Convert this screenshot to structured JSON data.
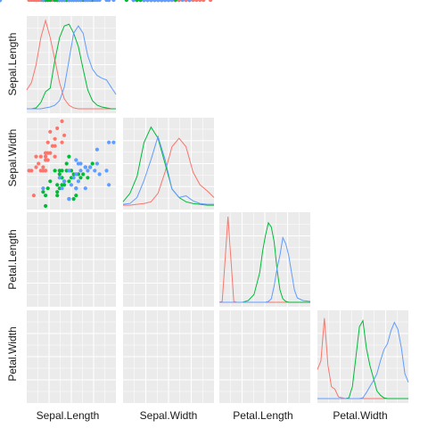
{
  "chart_data": {
    "type": "scatter-matrix",
    "variables": [
      "Sepal.Length",
      "Sepal.Width",
      "Petal.Length",
      "Petal.Width"
    ],
    "series_colors": [
      "#f8766d",
      "#00ba38",
      "#619cff"
    ],
    "panel_background": "#ebebeb",
    "grid_color": "#ffffff",
    "grid": true,
    "diagonal": "density",
    "lower": "scatter",
    "upper": "blank",
    "ranges": {
      "Sepal.Length": [
        4.2,
        8.0
      ],
      "Sepal.Width": [
        1.9,
        4.5
      ],
      "Petal.Length": [
        0.8,
        7.1
      ],
      "Petal.Width": [
        0.0,
        2.6
      ]
    },
    "density_x": [
      [
        4.2,
        4.4,
        4.6,
        4.8,
        5.0,
        5.2,
        5.4,
        5.6,
        5.8,
        6.0,
        6.2,
        6.4,
        6.6,
        6.8,
        7.0,
        7.2,
        7.4,
        7.6,
        7.8,
        8.0
      ],
      [
        1.9,
        2.1,
        2.3,
        2.5,
        2.7,
        2.9,
        3.1,
        3.3,
        3.5,
        3.7,
        3.9,
        4.1,
        4.3,
        4.5
      ],
      [
        0.8,
        1.0,
        1.2,
        1.4,
        1.6,
        1.8,
        2.0,
        2.4,
        2.8,
        3.2,
        3.6,
        3.8,
        4.0,
        4.2,
        4.4,
        4.6,
        4.8,
        5.0,
        5.2,
        5.4,
        5.6,
        5.8,
        6.0,
        6.2,
        6.6,
        7.1
      ],
      [
        0.0,
        0.1,
        0.2,
        0.3,
        0.4,
        0.5,
        0.6,
        0.8,
        0.9,
        1.0,
        1.1,
        1.2,
        1.3,
        1.4,
        1.5,
        1.6,
        1.7,
        1.8,
        1.9,
        2.0,
        2.1,
        2.2,
        2.3,
        2.4,
        2.5,
        2.6
      ]
    ],
    "density_y": [
      [
        [
          0.22,
          0.3,
          0.5,
          0.8,
          0.99,
          0.8,
          0.55,
          0.3,
          0.12,
          0.05,
          0.02,
          0.01,
          0.01,
          0.01,
          0.01,
          0.01,
          0.01,
          0.01,
          0.01,
          0.01
        ],
        [
          0.01,
          0.01,
          0.02,
          0.08,
          0.2,
          0.24,
          0.55,
          0.8,
          0.93,
          0.95,
          0.85,
          0.7,
          0.45,
          0.22,
          0.1,
          0.05,
          0.03,
          0.02,
          0.01,
          0.01
        ],
        [
          0.01,
          0.01,
          0.01,
          0.01,
          0.02,
          0.03,
          0.05,
          0.1,
          0.25,
          0.55,
          0.85,
          0.93,
          0.85,
          0.6,
          0.45,
          0.38,
          0.35,
          0.33,
          0.25,
          0.17
        ]
      ],
      [
        [
          0.01,
          0.01,
          0.02,
          0.03,
          0.05,
          0.15,
          0.4,
          0.7,
          0.8,
          0.7,
          0.4,
          0.25,
          0.18,
          0.1
        ],
        [
          0.05,
          0.15,
          0.35,
          0.75,
          0.93,
          0.8,
          0.5,
          0.2,
          0.1,
          0.05,
          0.03,
          0.02,
          0.01,
          0.01
        ],
        [
          0.02,
          0.03,
          0.1,
          0.3,
          0.55,
          0.82,
          0.55,
          0.2,
          0.1,
          0.12,
          0.06,
          0.03,
          0.02,
          0.02
        ]
      ],
      [
        [
          0.01,
          0.02,
          0.5,
          0.99,
          0.5,
          0.02,
          0.01,
          0.01,
          0.01,
          0.01,
          0.01,
          0.01,
          0.01,
          0.01,
          0.01,
          0.01,
          0.01,
          0.01,
          0.01,
          0.01,
          0.01,
          0.01,
          0.01,
          0.01,
          0.01,
          0.01
        ],
        [
          0.01,
          0.01,
          0.01,
          0.01,
          0.01,
          0.01,
          0.01,
          0.01,
          0.03,
          0.1,
          0.35,
          0.6,
          0.78,
          0.92,
          0.87,
          0.7,
          0.38,
          0.15,
          0.05,
          0.02,
          0.01,
          0.01,
          0.01,
          0.01,
          0.01,
          0.01
        ],
        [
          0.01,
          0.01,
          0.01,
          0.01,
          0.01,
          0.01,
          0.01,
          0.01,
          0.01,
          0.01,
          0.01,
          0.01,
          0.01,
          0.02,
          0.05,
          0.2,
          0.4,
          0.55,
          0.75,
          0.68,
          0.55,
          0.35,
          0.15,
          0.06,
          0.03,
          0.02
        ]
      ],
      [
        [
          0.35,
          0.45,
          0.95,
          0.4,
          0.15,
          0.12,
          0.03,
          0.01,
          0.01,
          0.01,
          0.01,
          0.01,
          0.01,
          0.01,
          0.01,
          0.01,
          0.01,
          0.01,
          0.01,
          0.01,
          0.01,
          0.01,
          0.01,
          0.01,
          0.01,
          0.01
        ],
        [
          0.01,
          0.01,
          0.01,
          0.01,
          0.01,
          0.01,
          0.01,
          0.01,
          0.02,
          0.15,
          0.5,
          0.85,
          0.92,
          0.6,
          0.4,
          0.25,
          0.1,
          0.05,
          0.02,
          0.01,
          0.01,
          0.01,
          0.01,
          0.01,
          0.01,
          0.01
        ],
        [
          0.01,
          0.01,
          0.01,
          0.01,
          0.01,
          0.01,
          0.01,
          0.01,
          0.01,
          0.01,
          0.01,
          0.01,
          0.02,
          0.08,
          0.15,
          0.22,
          0.3,
          0.45,
          0.58,
          0.65,
          0.8,
          0.9,
          0.82,
          0.6,
          0.3,
          0.2
        ]
      ]
    ],
    "points": [
      [
        [
          4.3,
          3.0
        ],
        [
          4.4,
          3.0
        ],
        [
          4.5,
          2.3
        ],
        [
          4.6,
          3.1
        ],
        [
          4.6,
          3.4
        ],
        [
          4.8,
          3.0
        ],
        [
          4.8,
          3.4
        ],
        [
          4.9,
          3.0
        ],
        [
          4.9,
          3.1
        ],
        [
          5.0,
          3.0
        ],
        [
          5.0,
          3.3
        ],
        [
          5.0,
          3.5
        ],
        [
          5.1,
          3.5
        ],
        [
          5.1,
          3.8
        ],
        [
          5.1,
          3.3
        ],
        [
          5.2,
          3.5
        ],
        [
          5.2,
          4.1
        ],
        [
          5.3,
          3.7
        ],
        [
          5.4,
          3.9
        ],
        [
          5.4,
          3.4
        ],
        [
          5.5,
          4.2
        ],
        [
          5.7,
          3.8
        ],
        [
          5.7,
          4.4
        ],
        [
          5.8,
          4.0
        ],
        [
          5.0,
          3.4
        ],
        [
          4.7,
          3.2
        ],
        [
          5.4,
          3.7
        ]
      ],
      [
        [
          4.9,
          2.4
        ],
        [
          5.0,
          2.0
        ],
        [
          5.0,
          2.3
        ],
        [
          5.1,
          2.5
        ],
        [
          5.2,
          2.7
        ],
        [
          5.5,
          2.3
        ],
        [
          5.5,
          2.4
        ],
        [
          5.5,
          2.6
        ],
        [
          5.6,
          2.5
        ],
        [
          5.6,
          2.9
        ],
        [
          5.6,
          3.0
        ],
        [
          5.7,
          2.6
        ],
        [
          5.7,
          2.8
        ],
        [
          5.7,
          3.0
        ],
        [
          5.8,
          2.7
        ],
        [
          5.9,
          3.0
        ],
        [
          6.0,
          2.2
        ],
        [
          6.0,
          2.7
        ],
        [
          6.0,
          3.4
        ],
        [
          6.1,
          2.8
        ],
        [
          6.1,
          3.0
        ],
        [
          6.2,
          2.2
        ],
        [
          6.3,
          2.3
        ],
        [
          6.3,
          2.5
        ],
        [
          6.4,
          2.9
        ],
        [
          6.5,
          2.8
        ],
        [
          6.6,
          2.9
        ],
        [
          6.7,
          3.1
        ],
        [
          6.8,
          2.8
        ],
        [
          6.9,
          3.1
        ],
        [
          7.0,
          3.2
        ],
        [
          5.4,
          3.0
        ],
        [
          5.8,
          2.6
        ],
        [
          6.2,
          2.9
        ],
        [
          5.9,
          3.2
        ]
      ],
      [
        [
          4.9,
          2.5
        ],
        [
          5.6,
          2.8
        ],
        [
          5.7,
          2.5
        ],
        [
          5.8,
          2.7
        ],
        [
          6.0,
          2.2
        ],
        [
          6.1,
          2.6
        ],
        [
          6.2,
          2.8
        ],
        [
          6.3,
          2.5
        ],
        [
          6.3,
          2.9
        ],
        [
          6.3,
          3.3
        ],
        [
          6.4,
          2.7
        ],
        [
          6.4,
          3.2
        ],
        [
          6.5,
          3.0
        ],
        [
          6.7,
          2.5
        ],
        [
          6.7,
          3.1
        ],
        [
          6.8,
          3.0
        ],
        [
          6.9,
          3.1
        ],
        [
          7.1,
          3.0
        ],
        [
          7.2,
          3.6
        ],
        [
          7.2,
          3.2
        ],
        [
          7.3,
          2.9
        ],
        [
          7.6,
          3.0
        ],
        [
          7.7,
          2.6
        ],
        [
          7.7,
          3.8
        ],
        [
          7.9,
          3.8
        ],
        [
          6.0,
          3.0
        ],
        [
          6.5,
          3.2
        ]
      ]
    ]
  }
}
